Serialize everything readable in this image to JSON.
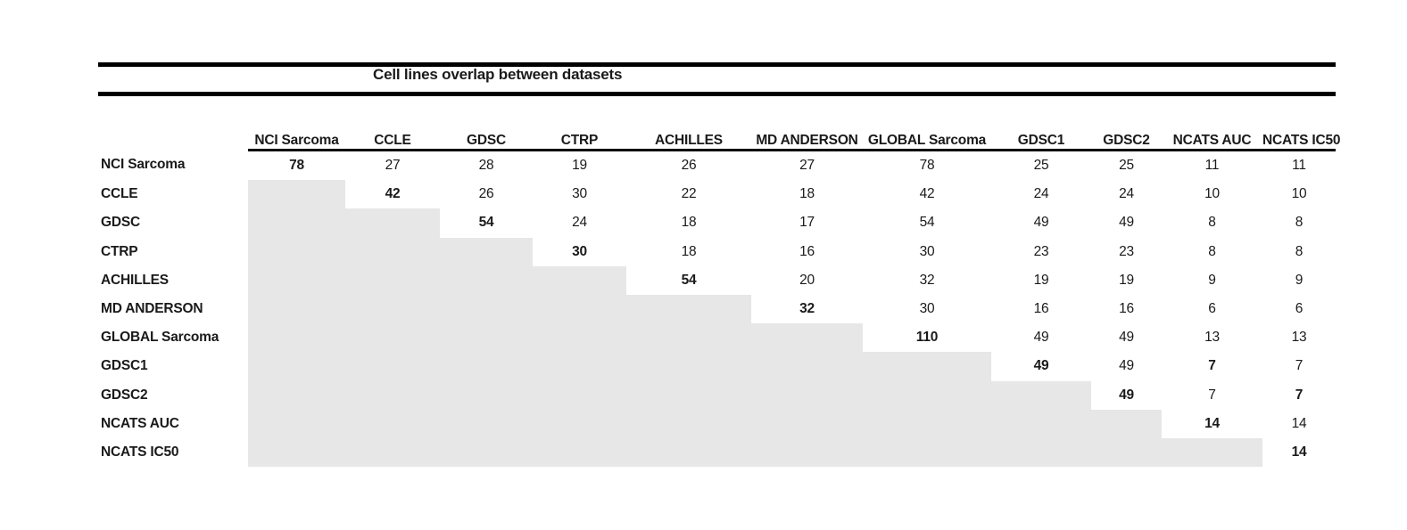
{
  "title": "Cell lines overlap between datasets",
  "colors": {
    "shade_fill": "#e7e7e7",
    "rule": "#000000",
    "text": "#1a1a1a",
    "background": "#ffffff"
  },
  "chart_data": {
    "type": "table",
    "title": "Cell lines overlap between datasets",
    "columns": [
      "NCI Sarcoma",
      "CCLE",
      "GDSC",
      "CTRP",
      "ACHILLES",
      "MD ANDERSON",
      "GLOBAL Sarcoma",
      "GDSC1",
      "GDSC2",
      "NCATS AUC",
      "NCATS IC50"
    ],
    "rows": [
      "NCI Sarcoma",
      "CCLE",
      "GDSC",
      "CTRP",
      "ACHILLES",
      "MD ANDERSON",
      "GLOBAL Sarcoma",
      "GDSC1",
      "GDSC2",
      "NCATS AUC",
      "NCATS IC50"
    ],
    "matrix": [
      [
        78,
        27,
        28,
        19,
        26,
        27,
        78,
        25,
        25,
        11,
        11
      ],
      [
        null,
        42,
        26,
        30,
        22,
        18,
        42,
        24,
        24,
        10,
        10
      ],
      [
        null,
        null,
        54,
        24,
        18,
        17,
        54,
        49,
        49,
        8,
        8
      ],
      [
        null,
        null,
        null,
        30,
        18,
        16,
        30,
        23,
        23,
        8,
        8
      ],
      [
        null,
        null,
        null,
        null,
        54,
        20,
        32,
        19,
        19,
        9,
        9
      ],
      [
        null,
        null,
        null,
        null,
        null,
        32,
        30,
        16,
        16,
        6,
        6
      ],
      [
        null,
        null,
        null,
        null,
        null,
        null,
        110,
        49,
        49,
        13,
        13
      ],
      [
        null,
        null,
        null,
        null,
        null,
        null,
        null,
        49,
        49,
        7,
        7
      ],
      [
        null,
        null,
        null,
        null,
        null,
        null,
        null,
        null,
        49,
        7,
        7
      ],
      [
        null,
        null,
        null,
        null,
        null,
        null,
        null,
        null,
        null,
        14,
        14
      ],
      [
        null,
        null,
        null,
        null,
        null,
        null,
        null,
        null,
        null,
        null,
        14
      ]
    ],
    "bold_cells": [
      [
        0,
        0
      ],
      [
        1,
        1
      ],
      [
        2,
        2
      ],
      [
        3,
        3
      ],
      [
        4,
        4
      ],
      [
        5,
        5
      ],
      [
        6,
        6
      ],
      [
        7,
        7
      ],
      [
        7,
        9
      ],
      [
        8,
        8
      ],
      [
        8,
        10
      ],
      [
        9,
        9
      ],
      [
        10,
        10
      ]
    ],
    "lower_triangle_shaded": true,
    "layout_hints": {
      "header_underline": true,
      "double_rule_around_title": true,
      "grid": "off"
    }
  }
}
